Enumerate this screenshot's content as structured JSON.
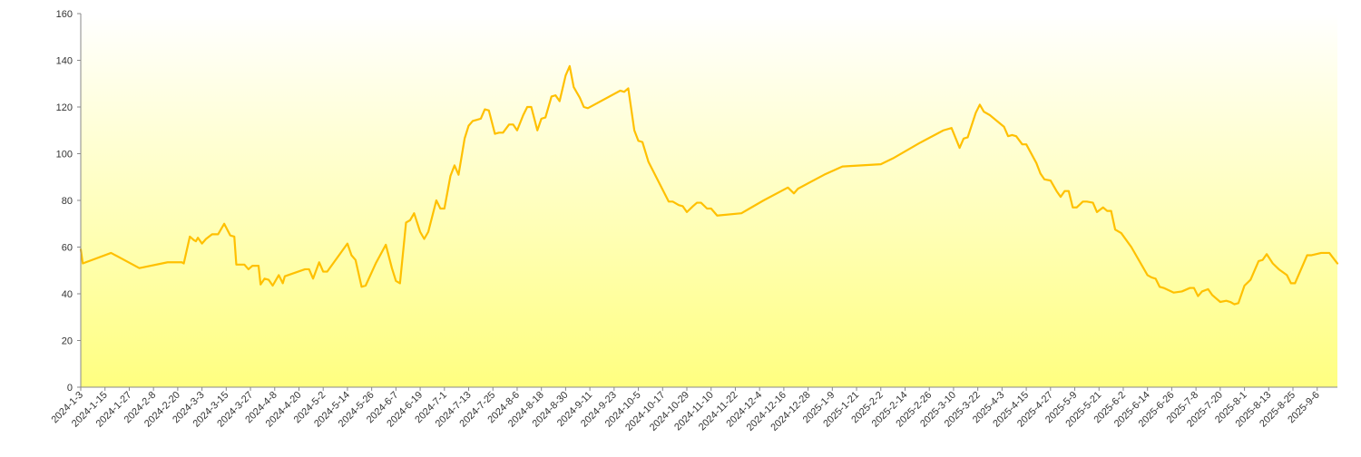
{
  "chart_data": {
    "type": "area",
    "title": "",
    "xlabel": "",
    "ylabel": "",
    "ylim": [
      0,
      160
    ],
    "yticks": [
      0,
      20,
      40,
      60,
      80,
      100,
      120,
      140,
      160
    ],
    "xlim": [
      "2024-01-03",
      "2025-09-16"
    ],
    "xticks": [
      "2024-1-3",
      "2024-1-15",
      "2024-1-27",
      "2024-2-8",
      "2024-2-20",
      "2024-3-3",
      "2024-3-15",
      "2024-3-27",
      "2024-4-8",
      "2024-4-20",
      "2024-5-2",
      "2024-5-14",
      "2024-5-26",
      "2024-6-7",
      "2024-6-19",
      "2024-7-1",
      "2024-7-13",
      "2024-7-25",
      "2024-8-6",
      "2024-8-18",
      "2024-8-30",
      "2024-9-11",
      "2024-9-23",
      "2024-10-5",
      "2024-10-17",
      "2024-10-29",
      "2024-11-10",
      "2024-11-22",
      "2024-12-4",
      "2024-12-16",
      "2024-12-28",
      "2025-1-9",
      "2025-1-21",
      "2025-2-2",
      "2025-2-14",
      "2025-2-26",
      "2025-3-10",
      "2025-3-22",
      "2025-4-3",
      "2025-4-15",
      "2025-4-27",
      "2025-5-9",
      "2025-5-21",
      "2025-6-2",
      "2025-6-14",
      "2025-6-26",
      "2025-7-8",
      "2025-7-20",
      "2025-8-1",
      "2025-8-13",
      "2025-8-25",
      "2025-9-6"
    ],
    "grid": false,
    "legend": "none",
    "colors": {
      "line": "#FFC000",
      "fill_top": "#FFFFFF",
      "fill_bottom": "#FFFF80",
      "axis": "#888888",
      "text": "#333333"
    },
    "series": [
      {
        "points": [
          [
            "2024-01-03",
            59
          ],
          [
            "2024-01-04",
            53
          ],
          [
            "2024-01-18",
            57.5
          ],
          [
            "2024-02-01",
            51
          ],
          [
            "2024-02-15",
            53.5
          ],
          [
            "2024-02-22",
            53.5
          ],
          [
            "2024-02-23",
            53
          ],
          [
            "2024-02-26",
            64.5
          ],
          [
            "2024-02-28",
            63
          ],
          [
            "2024-02-29",
            62.5
          ],
          [
            "2024-03-01",
            64
          ],
          [
            "2024-03-03",
            61.5
          ],
          [
            "2024-03-05",
            63.5
          ],
          [
            "2024-03-08",
            65.5
          ],
          [
            "2024-03-11",
            65.5
          ],
          [
            "2024-03-14",
            70
          ],
          [
            "2024-03-17",
            65
          ],
          [
            "2024-03-19",
            64.5
          ],
          [
            "2024-03-20",
            52.5
          ],
          [
            "2024-03-24",
            52.5
          ],
          [
            "2024-03-26",
            50.5
          ],
          [
            "2024-03-28",
            52
          ],
          [
            "2024-03-31",
            52
          ],
          [
            "2024-04-01",
            44
          ],
          [
            "2024-04-03",
            46.5
          ],
          [
            "2024-04-05",
            46
          ],
          [
            "2024-04-07",
            43.5
          ],
          [
            "2024-04-10",
            48
          ],
          [
            "2024-04-12",
            44.5
          ],
          [
            "2024-04-13",
            47.5
          ],
          [
            "2024-04-23",
            50.5
          ],
          [
            "2024-04-25",
            50.5
          ],
          [
            "2024-04-27",
            46.5
          ],
          [
            "2024-04-30",
            53.5
          ],
          [
            "2024-05-02",
            49.5
          ],
          [
            "2024-05-04",
            49.5
          ],
          [
            "2024-05-14",
            61.5
          ],
          [
            "2024-05-16",
            56.5
          ],
          [
            "2024-05-18",
            54.5
          ],
          [
            "2024-05-21",
            43
          ],
          [
            "2024-05-23",
            43.5
          ],
          [
            "2024-05-28",
            53
          ],
          [
            "2024-06-02",
            61
          ],
          [
            "2024-06-05",
            51
          ],
          [
            "2024-06-07",
            45.5
          ],
          [
            "2024-06-09",
            44.5
          ],
          [
            "2024-06-12",
            70.5
          ],
          [
            "2024-06-14",
            71.5
          ],
          [
            "2024-06-16",
            74.5
          ],
          [
            "2024-06-19",
            66.5
          ],
          [
            "2024-06-21",
            63.5
          ],
          [
            "2024-06-23",
            66.5
          ],
          [
            "2024-06-27",
            80
          ],
          [
            "2024-06-29",
            76.5
          ],
          [
            "2024-07-01",
            76.5
          ],
          [
            "2024-07-04",
            90.5
          ],
          [
            "2024-07-06",
            95
          ],
          [
            "2024-07-08",
            91
          ],
          [
            "2024-07-11",
            106.5
          ],
          [
            "2024-07-13",
            112
          ],
          [
            "2024-07-15",
            114
          ],
          [
            "2024-07-17",
            114.5
          ],
          [
            "2024-07-19",
            115
          ],
          [
            "2024-07-21",
            119
          ],
          [
            "2024-07-23",
            118.5
          ],
          [
            "2024-07-26",
            108.5
          ],
          [
            "2024-07-28",
            109
          ],
          [
            "2024-07-30",
            109
          ],
          [
            "2024-08-02",
            112.5
          ],
          [
            "2024-08-04",
            112.5
          ],
          [
            "2024-08-06",
            110
          ],
          [
            "2024-08-09",
            116.5
          ],
          [
            "2024-08-11",
            120
          ],
          [
            "2024-08-13",
            120
          ],
          [
            "2024-08-16",
            110
          ],
          [
            "2024-08-18",
            115
          ],
          [
            "2024-08-20",
            115.5
          ],
          [
            "2024-08-23",
            124.5
          ],
          [
            "2024-08-25",
            125
          ],
          [
            "2024-08-27",
            122.5
          ],
          [
            "2024-08-30",
            133.5
          ],
          [
            "2024-09-01",
            137.5
          ],
          [
            "2024-09-03",
            128.5
          ],
          [
            "2024-09-06",
            124
          ],
          [
            "2024-09-08",
            120
          ],
          [
            "2024-09-10",
            119.5
          ],
          [
            "2024-09-26",
            127
          ],
          [
            "2024-09-28",
            126.5
          ],
          [
            "2024-09-30",
            128
          ],
          [
            "2024-10-03",
            110
          ],
          [
            "2024-10-05",
            105.5
          ],
          [
            "2024-10-07",
            105
          ],
          [
            "2024-10-10",
            96.5
          ],
          [
            "2024-10-20",
            79.5
          ],
          [
            "2024-10-22",
            79.5
          ],
          [
            "2024-10-25",
            78
          ],
          [
            "2024-10-27",
            77.5
          ],
          [
            "2024-10-29",
            75
          ],
          [
            "2024-11-01",
            77.5
          ],
          [
            "2024-11-03",
            79
          ],
          [
            "2024-11-05",
            79
          ],
          [
            "2024-11-08",
            76.5
          ],
          [
            "2024-11-10",
            76.5
          ],
          [
            "2024-11-13",
            73.5
          ],
          [
            "2024-11-25",
            74.5
          ],
          [
            "2024-11-29",
            76.5
          ],
          [
            "2024-12-06",
            80
          ],
          [
            "2024-12-18",
            85.5
          ],
          [
            "2024-12-21",
            83
          ],
          [
            "2024-12-23",
            85
          ],
          [
            "2025-01-05",
            91
          ],
          [
            "2025-01-14",
            94.5
          ],
          [
            "2025-02-02",
            95.5
          ],
          [
            "2025-02-08",
            98
          ],
          [
            "2025-02-21",
            104.5
          ],
          [
            "2025-03-05",
            110
          ],
          [
            "2025-03-09",
            111
          ],
          [
            "2025-03-13",
            102.5
          ],
          [
            "2025-03-15",
            106.5
          ],
          [
            "2025-03-17",
            107
          ],
          [
            "2025-03-21",
            117.5
          ],
          [
            "2025-03-23",
            121
          ],
          [
            "2025-03-25",
            118
          ],
          [
            "2025-03-28",
            116.5
          ],
          [
            "2025-04-04",
            111.5
          ],
          [
            "2025-04-06",
            107.5
          ],
          [
            "2025-04-08",
            108
          ],
          [
            "2025-04-10",
            107.5
          ],
          [
            "2025-04-13",
            104
          ],
          [
            "2025-04-15",
            104
          ],
          [
            "2025-04-20",
            96
          ],
          [
            "2025-04-22",
            91.5
          ],
          [
            "2025-04-24",
            89
          ],
          [
            "2025-04-27",
            88.5
          ],
          [
            "2025-04-30",
            84
          ],
          [
            "2025-05-02",
            81.5
          ],
          [
            "2025-05-04",
            84
          ],
          [
            "2025-05-06",
            84
          ],
          [
            "2025-05-08",
            77
          ],
          [
            "2025-05-10",
            77
          ],
          [
            "2025-05-13",
            79.5
          ],
          [
            "2025-05-15",
            79.5
          ],
          [
            "2025-05-18",
            79
          ],
          [
            "2025-05-20",
            75
          ],
          [
            "2025-05-23",
            77
          ],
          [
            "2025-05-25",
            75.5
          ],
          [
            "2025-05-27",
            75.5
          ],
          [
            "2025-05-29",
            67.5
          ],
          [
            "2025-06-01",
            66
          ],
          [
            "2025-06-06",
            60
          ],
          [
            "2025-06-14",
            48
          ],
          [
            "2025-06-16",
            47
          ],
          [
            "2025-06-18",
            46.5
          ],
          [
            "2025-06-20",
            43
          ],
          [
            "2025-06-22",
            42.5
          ],
          [
            "2025-06-27",
            40.5
          ],
          [
            "2025-07-01",
            41
          ],
          [
            "2025-07-05",
            42.5
          ],
          [
            "2025-07-07",
            42.5
          ],
          [
            "2025-07-09",
            39
          ],
          [
            "2025-07-11",
            41
          ],
          [
            "2025-07-14",
            42
          ],
          [
            "2025-07-16",
            39.5
          ],
          [
            "2025-07-20",
            36.5
          ],
          [
            "2025-07-23",
            37
          ],
          [
            "2025-07-25",
            36.5
          ],
          [
            "2025-07-27",
            35.5
          ],
          [
            "2025-07-29",
            36
          ],
          [
            "2025-08-01",
            43.5
          ],
          [
            "2025-08-04",
            46
          ],
          [
            "2025-08-08",
            54
          ],
          [
            "2025-08-10",
            54.5
          ],
          [
            "2025-08-12",
            57
          ],
          [
            "2025-08-15",
            53
          ],
          [
            "2025-08-18",
            50.5
          ],
          [
            "2025-08-22",
            48
          ],
          [
            "2025-08-24",
            44.5
          ],
          [
            "2025-08-26",
            44.5
          ],
          [
            "2025-09-01",
            56.5
          ],
          [
            "2025-09-03",
            56.5
          ],
          [
            "2025-09-08",
            57.5
          ],
          [
            "2025-09-12",
            57.5
          ],
          [
            "2025-09-16",
            53
          ]
        ]
      }
    ]
  }
}
